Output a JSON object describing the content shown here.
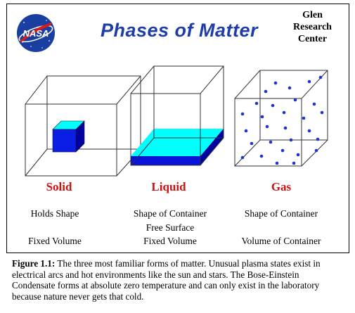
{
  "header": {
    "title": "Phases  of  Matter",
    "logo_text": "NASA",
    "center_line1": "Glen",
    "center_line2": "Research",
    "center_line3": "Center"
  },
  "phases": [
    {
      "name": "Solid",
      "props": [
        "Holds Shape",
        "",
        "Fixed Volume"
      ]
    },
    {
      "name": "Liquid",
      "props": [
        "Shape of Container",
        "Free Surface",
        "Fixed Volume"
      ]
    },
    {
      "name": "Gas",
      "props": [
        "Shape of Container",
        "",
        "Volume of Container"
      ]
    }
  ],
  "caption": {
    "label": "Figure 1.1:",
    "text": " The three most familiar forms of matter.  Unusual plasma states exist in electrical arcs and hot environments like the sun and stars.  The Bose-Einstein Condensate forms at absolute zero temperature and can only exist in the laboratory because nature never gets that cold."
  },
  "colors": {
    "title": "#1f3da8",
    "phase_name": "#d01010",
    "solid_front": "#0a1ee6",
    "solid_top": "#00ffff",
    "solid_side": "#0000a0",
    "liquid_surface": "#00ffff",
    "liquid_front": "#0a14d8",
    "gas_dot": "#1f35c8"
  }
}
